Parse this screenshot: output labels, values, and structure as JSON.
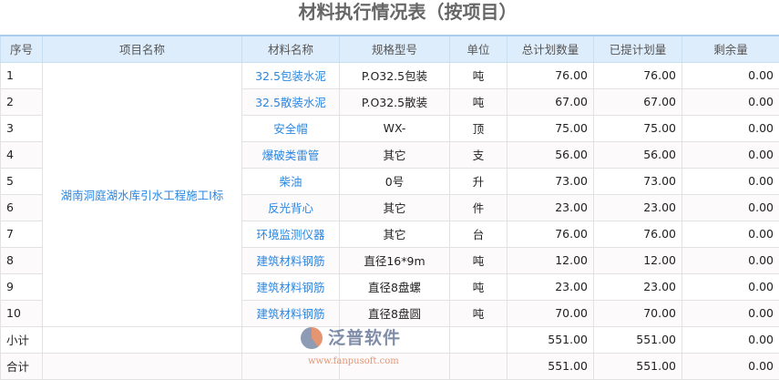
{
  "title": "材料执行情况表（按项目）",
  "headers": [
    "序号",
    "项目名称",
    "材料名称",
    "规格型号",
    "单位",
    "总计划数量",
    "已提计划量",
    "剩余量"
  ],
  "project": "湖南洞庭湖水库引水工程施工I标",
  "rows": [
    {
      "no": "1",
      "material": "32.5包装水泥",
      "spec": "P.O32.5包装",
      "unit": "吨",
      "total": "76.00",
      "planned": "76.00",
      "remain": "0.00"
    },
    {
      "no": "2",
      "material": "32.5散装水泥",
      "spec": "P.O32.5散装",
      "unit": "吨",
      "total": "67.00",
      "planned": "67.00",
      "remain": "0.00"
    },
    {
      "no": "3",
      "material": "安全帽",
      "spec": "WX-",
      "unit": "顶",
      "total": "75.00",
      "planned": "75.00",
      "remain": "0.00"
    },
    {
      "no": "4",
      "material": "爆破类雷管",
      "spec": "其它",
      "unit": "支",
      "total": "56.00",
      "planned": "56.00",
      "remain": "0.00"
    },
    {
      "no": "5",
      "material": "柴油",
      "spec": "0号",
      "unit": "升",
      "total": "73.00",
      "planned": "73.00",
      "remain": "0.00"
    },
    {
      "no": "6",
      "material": "反光背心",
      "spec": "其它",
      "unit": "件",
      "total": "23.00",
      "planned": "23.00",
      "remain": "0.00"
    },
    {
      "no": "7",
      "material": "环境监测仪器",
      "spec": "其它",
      "unit": "台",
      "total": "76.00",
      "planned": "76.00",
      "remain": "0.00"
    },
    {
      "no": "8",
      "material": "建筑材料钢筋",
      "spec": "直径16*9m",
      "unit": "吨",
      "total": "12.00",
      "planned": "12.00",
      "remain": "0.00"
    },
    {
      "no": "9",
      "material": "建筑材料钢筋",
      "spec": "直径8盘螺",
      "unit": "吨",
      "total": "23.00",
      "planned": "23.00",
      "remain": "0.00"
    },
    {
      "no": "10",
      "material": "建筑材料钢筋",
      "spec": "直径8盘圆",
      "unit": "吨",
      "total": "70.00",
      "planned": "70.00",
      "remain": "0.00"
    }
  ],
  "subtotal": {
    "label": "小计",
    "total": "551.00",
    "planned": "551.00",
    "remain": "0.00"
  },
  "grandtotal": {
    "label": "合计",
    "total": "551.00",
    "planned": "551.00",
    "remain": "0.00"
  },
  "watermark": {
    "name": "泛普软件",
    "url": "www.fanpusoft.com"
  }
}
